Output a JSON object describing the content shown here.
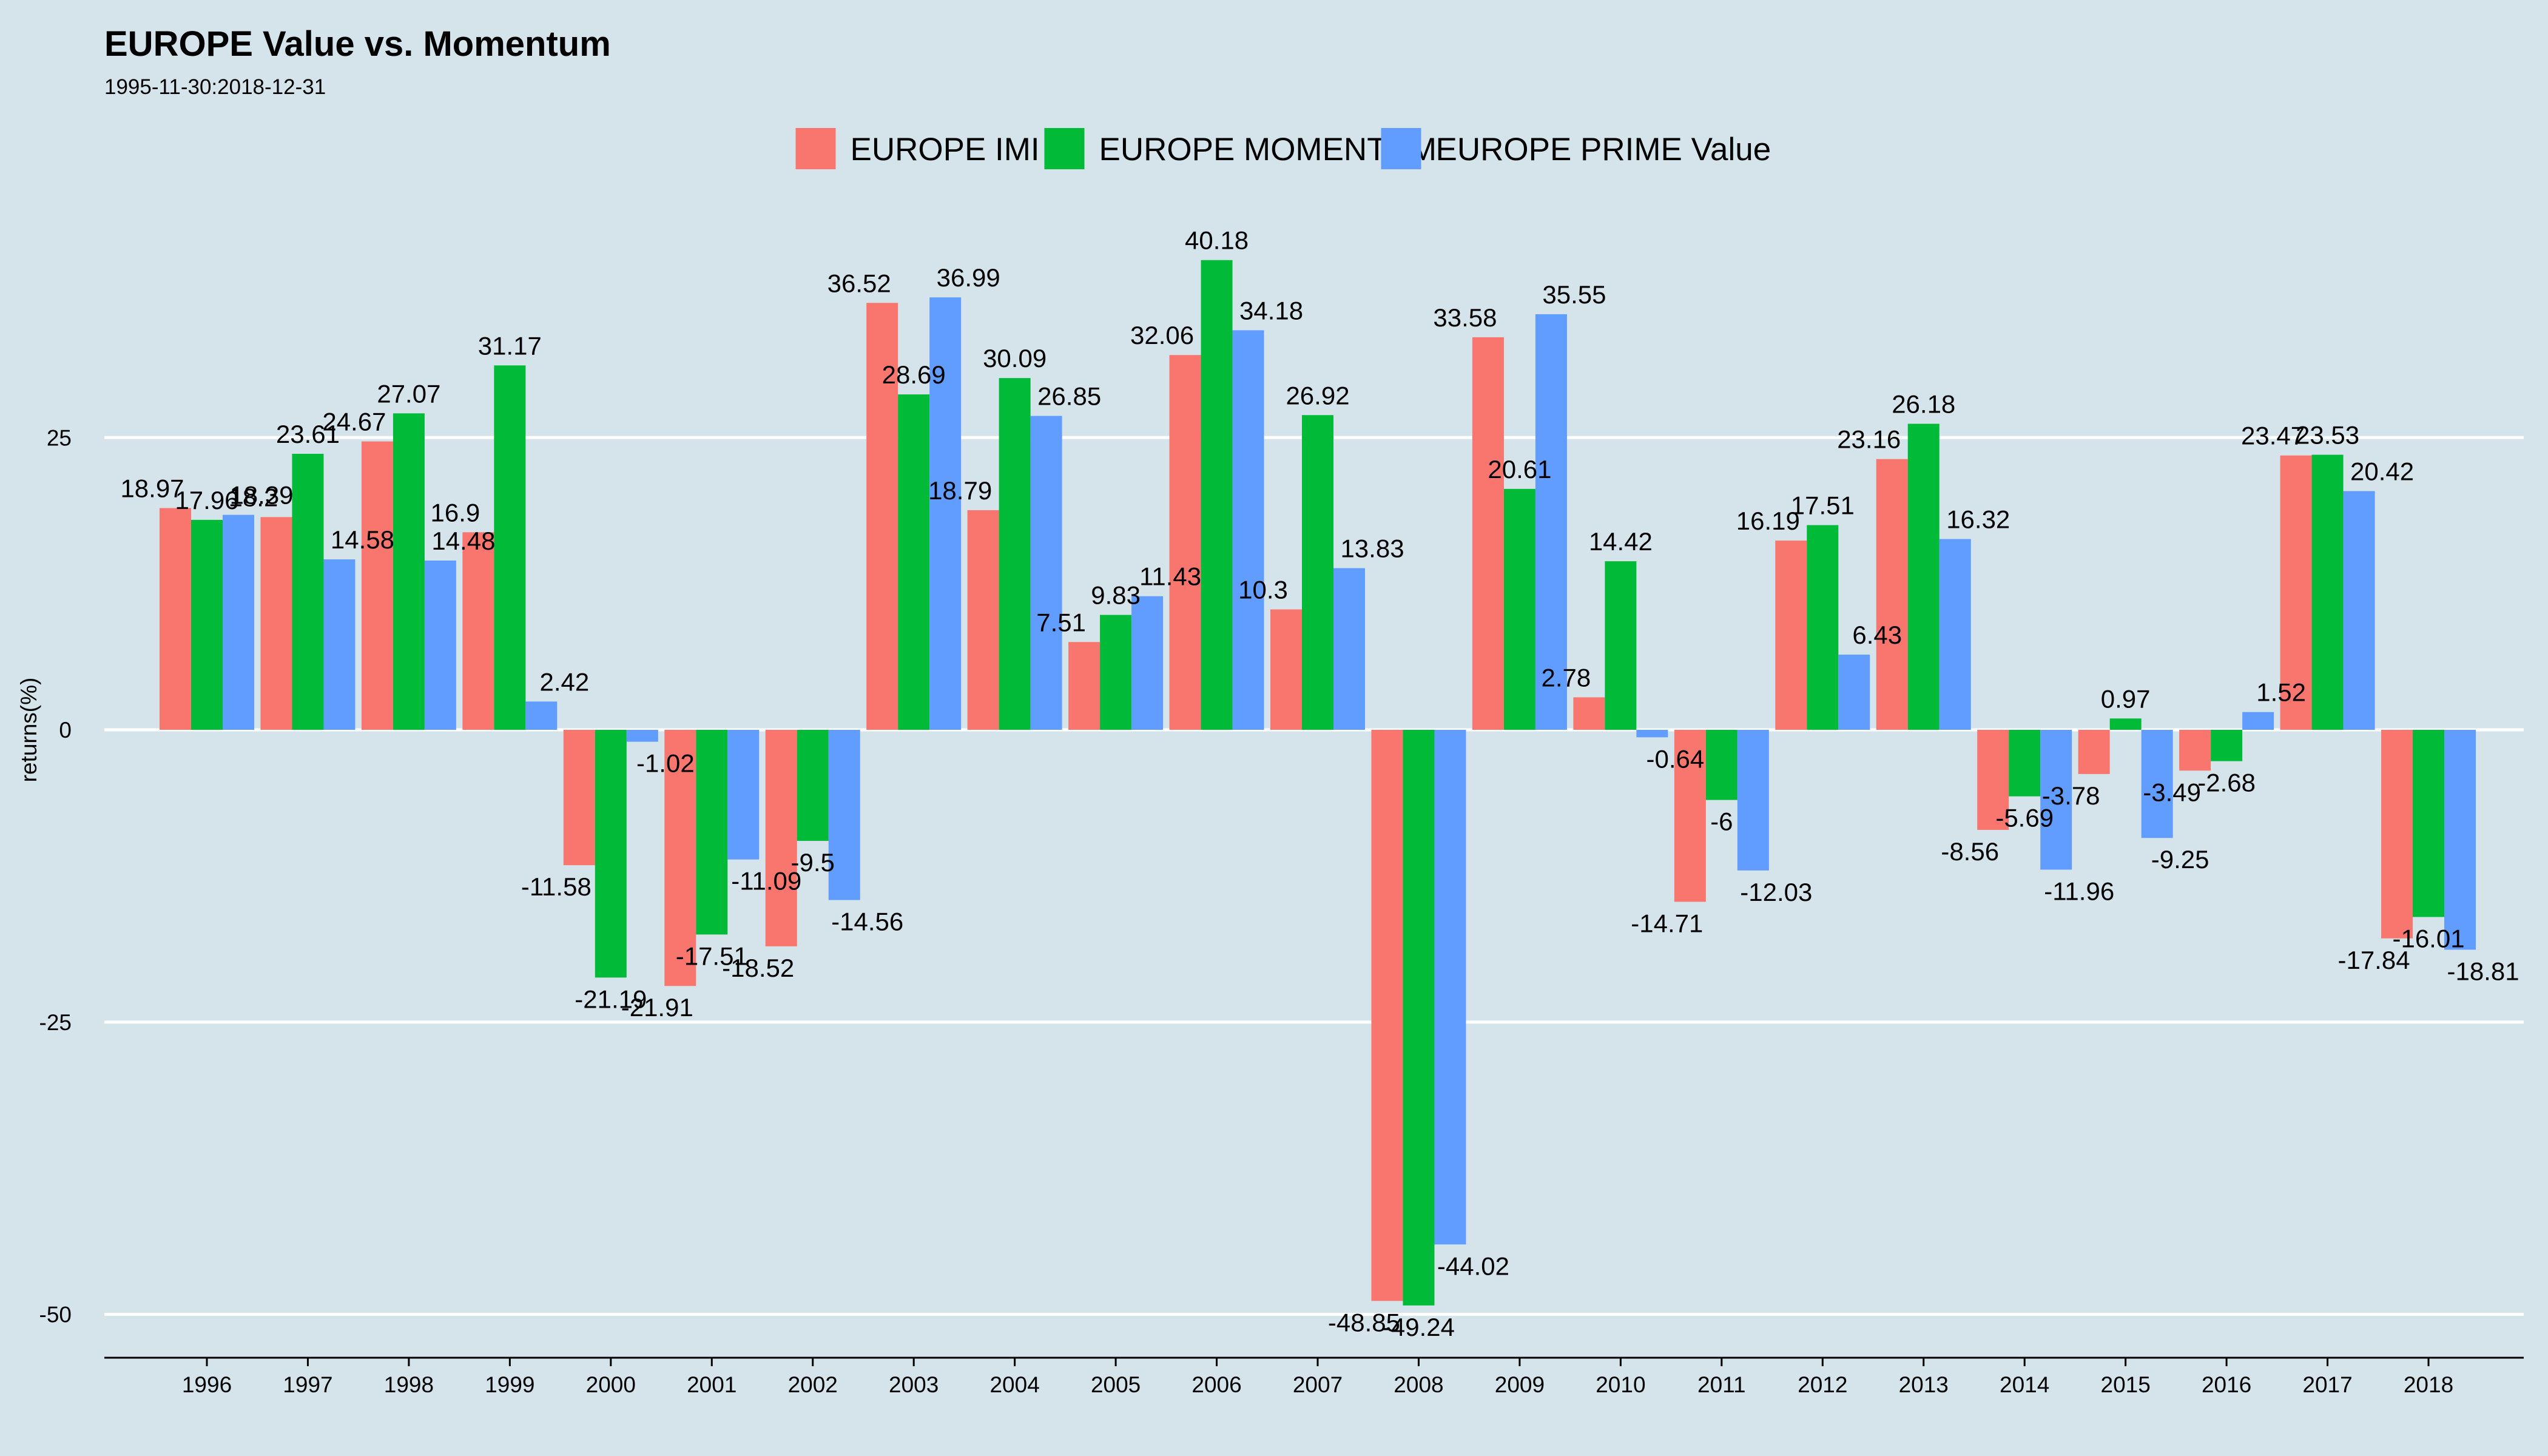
{
  "chart_data": {
    "type": "bar",
    "title": "EUROPE Value vs. Momentum",
    "subtitle": "1995-11-30:2018-12-31",
    "ylabel": "returns(%)",
    "xlabel": "",
    "ylim": [
      -52,
      44
    ],
    "yticks": [
      -50,
      -25,
      0,
      25
    ],
    "grid": "horizontal",
    "legend_position": "top",
    "categories": [
      "1996",
      "1997",
      "1998",
      "1999",
      "2000",
      "2001",
      "2002",
      "2003",
      "2004",
      "2005",
      "2006",
      "2007",
      "2008",
      "2009",
      "2010",
      "2011",
      "2012",
      "2013",
      "2014",
      "2015",
      "2016",
      "2017",
      "2018"
    ],
    "series": [
      {
        "name": "EUROPE IMI",
        "color": "#f8766d",
        "values": [
          18.97,
          18.2,
          24.67,
          16.9,
          -11.58,
          -21.91,
          -18.52,
          36.52,
          18.79,
          7.51,
          32.06,
          10.3,
          -48.85,
          33.58,
          2.78,
          -14.71,
          16.19,
          23.16,
          -8.56,
          -3.78,
          -3.49,
          23.47,
          -17.84
        ]
      },
      {
        "name": "EUROPE MOMENTUM",
        "color": "#00ba38",
        "values": [
          17.96,
          23.61,
          27.07,
          31.17,
          -21.19,
          -17.51,
          -9.5,
          28.69,
          30.09,
          9.83,
          40.18,
          26.92,
          -49.24,
          20.61,
          14.42,
          -6,
          17.51,
          26.18,
          -5.69,
          0.97,
          -2.68,
          23.53,
          -16.01
        ]
      },
      {
        "name": "EUROPE PRIME Value",
        "color": "#619cff",
        "values": [
          18.39,
          14.58,
          14.48,
          2.42,
          -1.02,
          -11.09,
          -14.56,
          36.99,
          26.85,
          11.43,
          34.18,
          13.83,
          -44.02,
          35.55,
          -0.64,
          -12.03,
          6.43,
          16.32,
          -11.96,
          -9.25,
          1.52,
          20.42,
          -18.81
        ]
      }
    ]
  },
  "colors": {
    "background": "#d5e4eb",
    "grid": "#ffffff"
  }
}
